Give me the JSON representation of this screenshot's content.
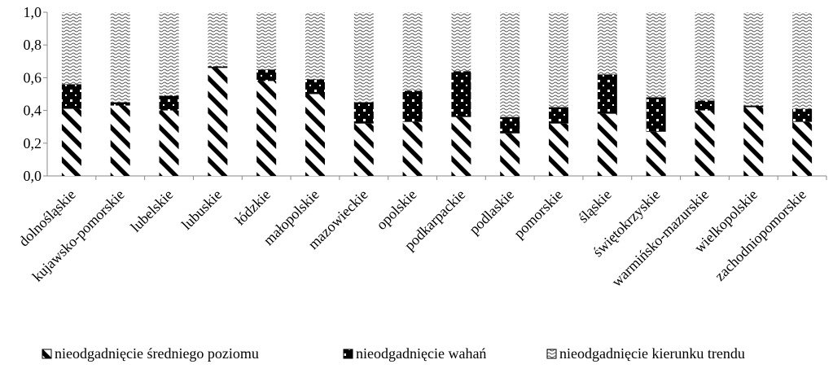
{
  "chart_data": {
    "type": "bar",
    "stacked": true,
    "title": "",
    "xlabel": "",
    "ylabel": "",
    "ylim": [
      0,
      1.0
    ],
    "yticks": [
      "0,0",
      "0,2",
      "0,4",
      "0,6",
      "0,8",
      "1,0"
    ],
    "ytick_values": [
      0,
      0.2,
      0.4,
      0.6,
      0.8,
      1.0
    ],
    "grid": false,
    "legend_position": "bottom",
    "categories": [
      "dolnośląskie",
      "kujawsko-pomorskie",
      "lubelskie",
      "lubuskie",
      "łódzkie",
      "małopolskie",
      "mazowieckie",
      "opolskie",
      "podkarpackie",
      "podlaskie",
      "pomorskie",
      "śląskie",
      "świętokrzyskie",
      "warmińsko-mazurskie",
      "wielkopolskie",
      "zachodniopomorskie"
    ],
    "series": [
      {
        "name": "nieodgadnięcie średniego poziomu",
        "values": [
          0.41,
          0.43,
          0.4,
          0.66,
          0.58,
          0.5,
          0.32,
          0.33,
          0.36,
          0.26,
          0.32,
          0.38,
          0.27,
          0.4,
          0.42,
          0.33
        ]
      },
      {
        "name": "nieodgadnięcie wahań",
        "values": [
          0.15,
          0.02,
          0.09,
          0.01,
          0.07,
          0.09,
          0.13,
          0.19,
          0.28,
          0.1,
          0.1,
          0.24,
          0.21,
          0.06,
          0.01,
          0.08
        ]
      },
      {
        "name": "nieodgadnięcie kierunku trendu",
        "values": [
          0.44,
          0.55,
          0.51,
          0.33,
          0.35,
          0.41,
          0.55,
          0.48,
          0.36,
          0.64,
          0.58,
          0.38,
          0.52,
          0.54,
          0.57,
          0.59
        ]
      }
    ]
  }
}
